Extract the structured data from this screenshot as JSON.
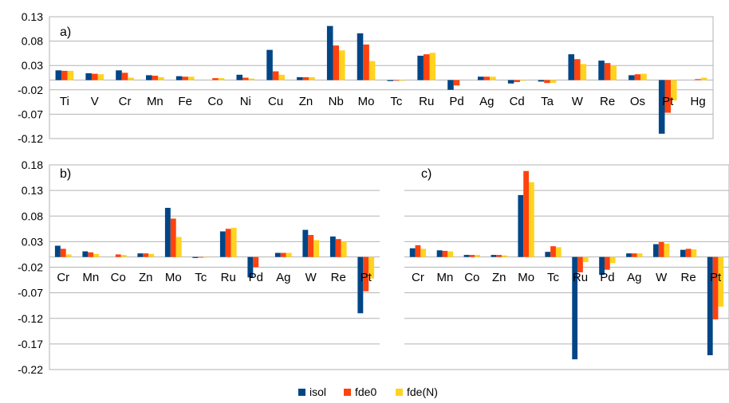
{
  "colors": {
    "isol": "#004586",
    "fde0": "#ff420e",
    "fde(N)": "#ffd320",
    "grid": "#b3b3b3"
  },
  "legend": [
    {
      "key": "isol",
      "label": "isol"
    },
    {
      "key": "fde0",
      "label": "fde0"
    },
    {
      "key": "fde(N)",
      "label": "fde(N)"
    }
  ],
  "chart_data": [
    {
      "type": "bar",
      "panel_label": "a)",
      "title": "",
      "xlabel": "",
      "ylabel": "",
      "ylim": [
        -0.12,
        0.13
      ],
      "yticks": [
        "0.13",
        "0.08",
        "0.03",
        "-0.02",
        "-0.07",
        "-0.12"
      ],
      "grid": true,
      "categories": [
        "Ti",
        "V",
        "Cr",
        "Mn",
        "Fe",
        "Co",
        "Ni",
        "Cu",
        "Zn",
        "Nb",
        "Mo",
        "Tc",
        "Ru",
        "Pd",
        "Ag",
        "Cd",
        "Ta",
        "W",
        "Re",
        "Os",
        "Pt",
        "Hg"
      ],
      "series": [
        {
          "name": "isol",
          "values": [
            0.02,
            0.014,
            0.02,
            0.01,
            0.008,
            0.0,
            0.011,
            0.062,
            0.006,
            0.111,
            0.096,
            -0.002,
            0.05,
            -0.02,
            0.007,
            -0.007,
            -0.003,
            0.053,
            0.04,
            0.01,
            -0.11,
            0.0
          ]
        },
        {
          "name": "fde0",
          "values": [
            0.019,
            0.013,
            0.015,
            0.009,
            0.007,
            0.004,
            0.005,
            0.018,
            0.006,
            0.071,
            0.073,
            -0.001,
            0.053,
            -0.011,
            0.007,
            -0.004,
            -0.006,
            0.043,
            0.035,
            0.012,
            -0.067,
            0.002
          ]
        },
        {
          "name": "fde(N)",
          "values": [
            0.019,
            0.012,
            0.005,
            0.006,
            0.007,
            0.004,
            0.003,
            0.011,
            0.006,
            0.061,
            0.039,
            -0.001,
            0.056,
            0.0,
            0.007,
            -0.001,
            -0.006,
            0.033,
            0.03,
            0.013,
            -0.042,
            0.005
          ]
        }
      ]
    },
    {
      "type": "bar",
      "panel_label": "b)",
      "title": "",
      "xlabel": "",
      "ylabel": "",
      "ylim": [
        -0.22,
        0.18
      ],
      "yticks": [
        "0.18",
        "0.13",
        "0.08",
        "0.03",
        "-0.02",
        "-0.07",
        "-0.12",
        "-0.17",
        "-0.22"
      ],
      "grid": true,
      "categories": [
        "Cr",
        "Mn",
        "Co",
        "Zn",
        "Mo",
        "Tc",
        "Ru",
        "Pd",
        "Ag",
        "W",
        "Re",
        "Pt"
      ],
      "series": [
        {
          "name": "isol",
          "values": [
            0.022,
            0.011,
            0.0,
            0.007,
            0.096,
            -0.002,
            0.05,
            -0.04,
            0.008,
            0.053,
            0.04,
            -0.11
          ]
        },
        {
          "name": "fde0",
          "values": [
            0.016,
            0.009,
            0.005,
            0.007,
            0.075,
            -0.001,
            0.055,
            -0.02,
            0.008,
            0.043,
            0.035,
            -0.067
          ]
        },
        {
          "name": "fde(N)",
          "values": [
            0.005,
            0.006,
            0.004,
            0.006,
            0.039,
            -0.001,
            0.057,
            0.0,
            0.008,
            0.033,
            0.03,
            -0.042
          ]
        }
      ]
    },
    {
      "type": "bar",
      "panel_label": "c)",
      "title": "",
      "xlabel": "",
      "ylabel": "",
      "ylim": [
        -0.22,
        0.18
      ],
      "grid": true,
      "categories": [
        "Cr",
        "Mn",
        "Co",
        "Zn",
        "Mo",
        "Tc",
        "Ru",
        "Pd",
        "Ag",
        "W",
        "Re",
        "Pt"
      ],
      "series": [
        {
          "name": "isol",
          "values": [
            0.017,
            0.013,
            0.004,
            0.004,
            0.121,
            0.01,
            -0.2,
            -0.035,
            0.007,
            0.025,
            0.014,
            -0.192
          ]
        },
        {
          "name": "fde0",
          "values": [
            0.023,
            0.012,
            0.004,
            0.004,
            0.168,
            0.021,
            -0.03,
            -0.025,
            0.007,
            0.029,
            0.016,
            -0.122
          ]
        },
        {
          "name": "fde(N)",
          "values": [
            0.016,
            0.011,
            0.004,
            0.003,
            0.146,
            0.019,
            -0.01,
            -0.012,
            0.007,
            0.026,
            0.015,
            -0.097
          ]
        }
      ]
    }
  ]
}
